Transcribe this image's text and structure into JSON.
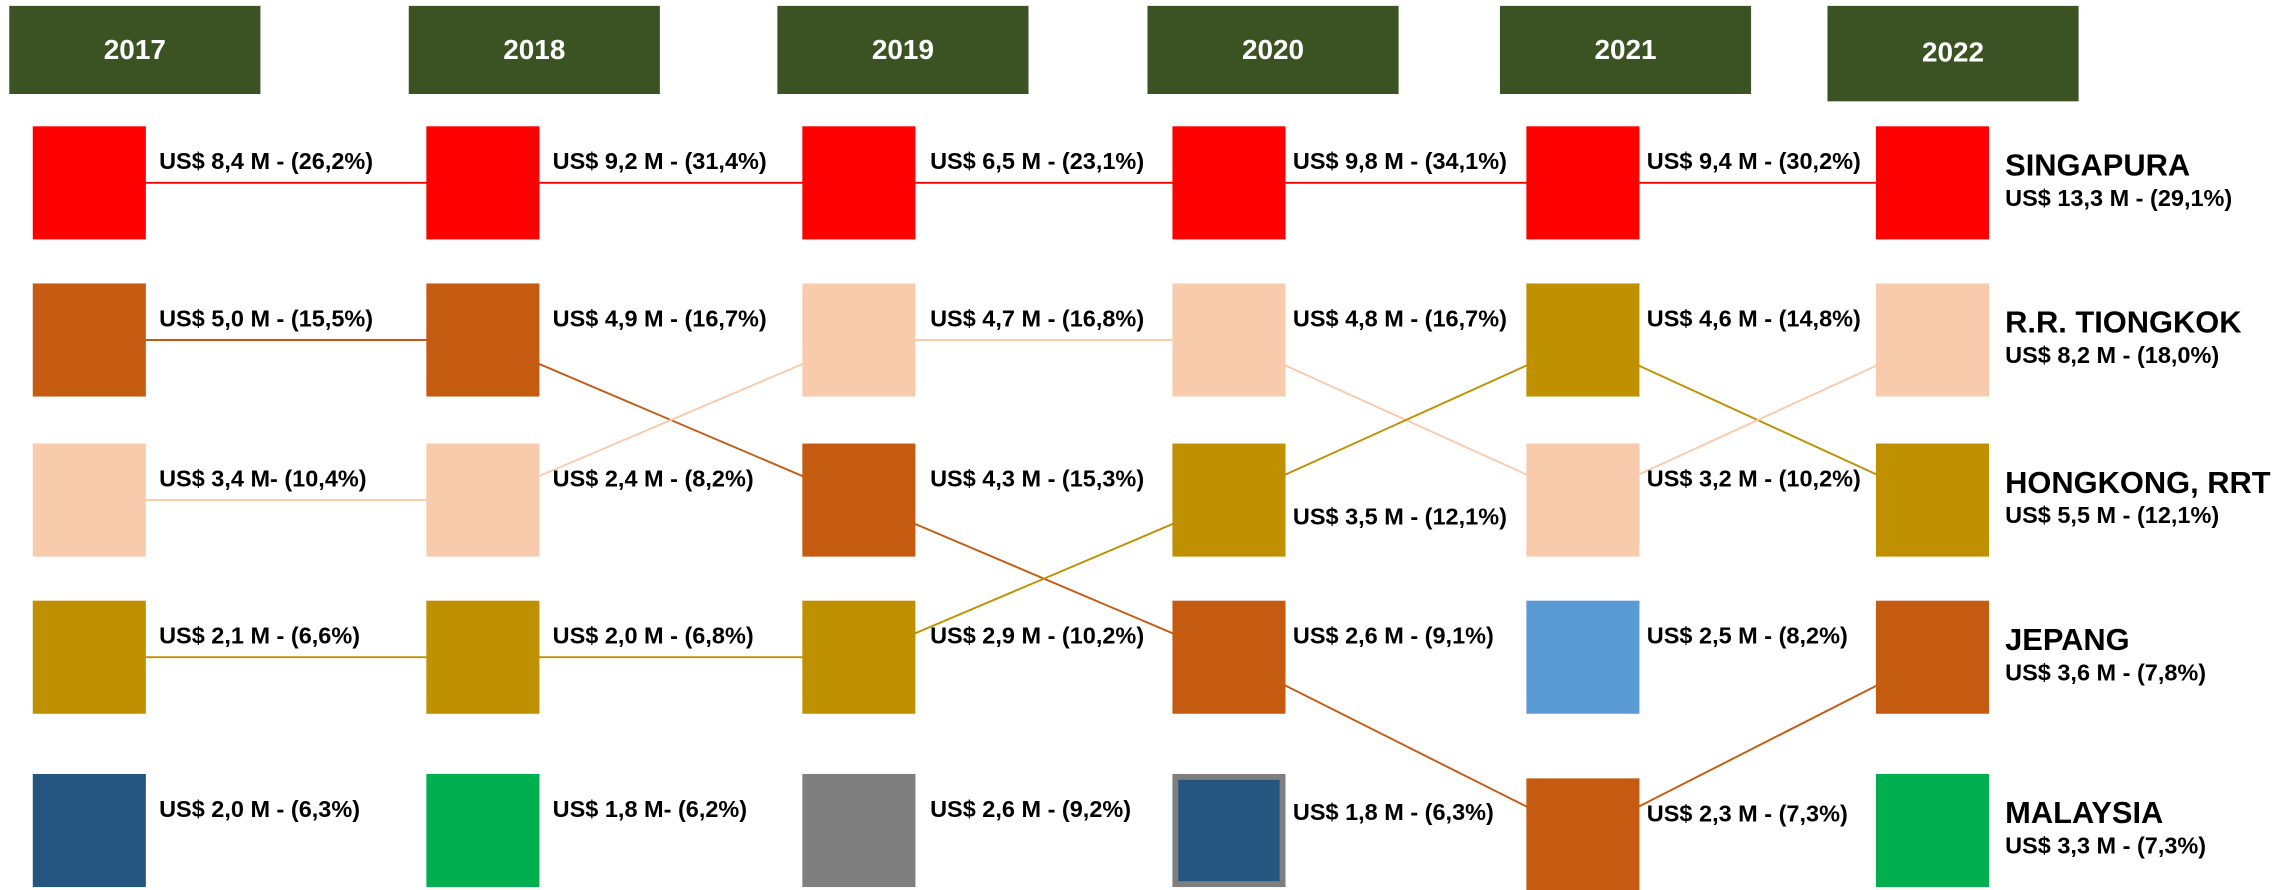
{
  "columns": [
    {
      "year": "2017",
      "items": [
        {
          "label": "US$ 8,4 M - (26,2%)",
          "color": "#ff0000"
        },
        {
          "label": "US$ 5,0 M - (15,5%)",
          "color": "#c55a11"
        },
        {
          "label": "US$ 3,4 M- (10,4%)",
          "color": "#f8cbad"
        },
        {
          "label": "US$ 2,1 M - (6,6%)",
          "color": "#bf9000"
        },
        {
          "label": "US$ 2,0 M - (6,3%)",
          "color": "#255680"
        }
      ]
    },
    {
      "year": "2018",
      "items": [
        {
          "label": "US$ 9,2 M - (31,4%)",
          "color": "#ff0000"
        },
        {
          "label": "US$ 4,9 M - (16,7%)",
          "color": "#c55a11"
        },
        {
          "label": "US$ 2,4 M - (8,2%)",
          "color": "#f8cbad"
        },
        {
          "label": "US$ 2,0 M - (6,8%)",
          "color": "#bf9000"
        },
        {
          "label": "US$ 1,8 M- (6,2%)",
          "color": "#00b050"
        }
      ]
    },
    {
      "year": "2019",
      "items": [
        {
          "label": "US$ 6,5 M - (23,1%)",
          "color": "#ff0000"
        },
        {
          "label": "US$ 4,7 M - (16,8%)",
          "color": "#f8cbad"
        },
        {
          "label": "US$ 4,3 M - (15,3%)",
          "color": "#c55a11"
        },
        {
          "label": "US$ 2,9 M - (10,2%)",
          "color": "#bf9000"
        },
        {
          "label": "US$ 2,6 M - (9,2%)",
          "color": "#7f7f7f"
        }
      ]
    },
    {
      "year": "2020",
      "items": [
        {
          "label": "US$ 9,8 M - (34,1%)",
          "color": "#ff0000"
        },
        {
          "label": "US$ 4,8 M - (16,7%)",
          "color": "#f8cbad"
        },
        {
          "label": "US$ 3,5 M - (12,1%)",
          "color": "#bf9000"
        },
        {
          "label": "US$ 2,6 M - (9,1%)",
          "color": "#c55a11"
        },
        {
          "label": "US$ 1,8 M - (6,3%)",
          "color": "#255680",
          "border": "#7f7f7f"
        }
      ]
    },
    {
      "year": "2021",
      "items": [
        {
          "label": "US$ 9,4 M - (30,2%)",
          "color": "#ff0000"
        },
        {
          "label": "US$ 4,6 M - (14,8%)",
          "color": "#bf9000"
        },
        {
          "label": "US$ 3,2 M - (10,2%)",
          "color": "#f8cbad"
        },
        {
          "label": "US$ 2,5 M - (8,2%)",
          "color": "#5b9bd5"
        },
        {
          "label": "US$ 2,3 M - (7,3%)",
          "color": "#c55a11"
        }
      ]
    },
    {
      "year": "2022",
      "items": [
        {
          "name": "SINGAPURA",
          "label": "US$ 13,3 M - (29,1%)",
          "color": "#ff0000"
        },
        {
          "name": "R.R. TIONGKOK",
          "label": "US$ 8,2 M - (18,0%)",
          "color": "#f8cbad"
        },
        {
          "name": "HONGKONG, RRT",
          "label": "US$ 5,5 M - (12,1%)",
          "color": "#bf9000"
        },
        {
          "name": "JEPANG",
          "label": "US$ 3,6 M - (7,8%)",
          "color": "#c55a11"
        },
        {
          "name": "MALAYSIA",
          "label": "US$ 3,3 M - (7,3%)",
          "color": "#00b050"
        }
      ]
    }
  ]
}
